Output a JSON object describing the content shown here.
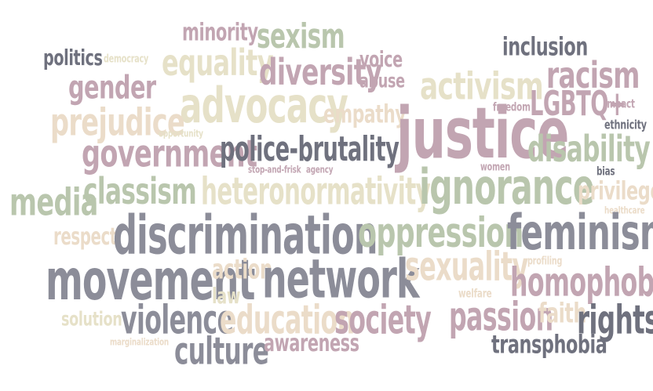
{
  "word_cloud": {
    "words": [
      {
        "text": "minority",
        "color": "#c2a5b2"
      },
      {
        "text": "sexism",
        "color": "#b9c6ad"
      },
      {
        "text": "inclusion",
        "color": "#6f717e"
      },
      {
        "text": "politics",
        "color": "#6f717e"
      },
      {
        "text": "democracy",
        "color": "#e6e1c8"
      },
      {
        "text": "equality",
        "color": "#e6e1c8"
      },
      {
        "text": "voice",
        "color": "#c2a5b2"
      },
      {
        "text": "diversity",
        "color": "#c2a5b2"
      },
      {
        "text": "abuse",
        "color": "#c2a5b2"
      },
      {
        "text": "activism",
        "color": "#e6e1c8"
      },
      {
        "text": "racism",
        "color": "#c2a5b2"
      },
      {
        "text": "gender",
        "color": "#c2a5b2"
      },
      {
        "text": "advocacy",
        "color": "#e6e1c8"
      },
      {
        "text": "empathy",
        "color": "#ebdcc9"
      },
      {
        "text": "freedom",
        "color": "#c2a5b2"
      },
      {
        "text": "LGBTQ+",
        "color": "#c2a5b2"
      },
      {
        "text": "impact",
        "color": "#c2a5b2"
      },
      {
        "text": "prejudice",
        "color": "#ebdcc9"
      },
      {
        "text": "justice",
        "color": "#c2a5b2"
      },
      {
        "text": "ethnicity",
        "color": "#6f717e"
      },
      {
        "text": "opportunity",
        "color": "#e6e1c8"
      },
      {
        "text": "government",
        "color": "#c2a5b2"
      },
      {
        "text": "police-brutality",
        "color": "#6f717e"
      },
      {
        "text": "disability",
        "color": "#b9c6ad"
      },
      {
        "text": "stop-and-frisk",
        "color": "#c2a5b2"
      },
      {
        "text": "agency",
        "color": "#c2a5b2"
      },
      {
        "text": "women",
        "color": "#c2a5b2"
      },
      {
        "text": "bias",
        "color": "#6f717e"
      },
      {
        "text": "media",
        "color": "#b9c6ad"
      },
      {
        "text": "classism",
        "color": "#b9c6ad"
      },
      {
        "text": "heteronormativity",
        "color": "#e6e1c8"
      },
      {
        "text": "ignorance",
        "color": "#b9c6ad"
      },
      {
        "text": "privilege",
        "color": "#ebdcc9"
      },
      {
        "text": "healthcare",
        "color": "#ebdcc9"
      },
      {
        "text": "respect",
        "color": "#ebdcc9"
      },
      {
        "text": "discrimination",
        "color": "#8c8d99"
      },
      {
        "text": "oppression",
        "color": "#b9c6ad"
      },
      {
        "text": "feminism",
        "color": "#8c8d99"
      },
      {
        "text": "profiling",
        "color": "#ebdcc9"
      },
      {
        "text": "movement",
        "color": "#8c8d99"
      },
      {
        "text": "action",
        "color": "#ebdcc9"
      },
      {
        "text": "network",
        "color": "#8c8d99"
      },
      {
        "text": "sexuality",
        "color": "#ebdcc9"
      },
      {
        "text": "homophobia",
        "color": "#c2a5b2"
      },
      {
        "text": "law",
        "color": "#e6e1c8"
      },
      {
        "text": "welfare",
        "color": "#ebdcc9"
      },
      {
        "text": "solution",
        "color": "#e6e1c8"
      },
      {
        "text": "violence",
        "color": "#8c8d99"
      },
      {
        "text": "education",
        "color": "#ebdcc9"
      },
      {
        "text": "society",
        "color": "#c2a5b2"
      },
      {
        "text": "passion",
        "color": "#c2a5b2"
      },
      {
        "text": "faith",
        "color": "#ebdcc9"
      },
      {
        "text": "rights",
        "color": "#6f717e"
      },
      {
        "text": "marginalization",
        "color": "#ebdcc9"
      },
      {
        "text": "culture",
        "color": "#8c8d99"
      },
      {
        "text": "awareness",
        "color": "#c2a5b2"
      },
      {
        "text": "transphobia",
        "color": "#6f717e"
      }
    ]
  }
}
